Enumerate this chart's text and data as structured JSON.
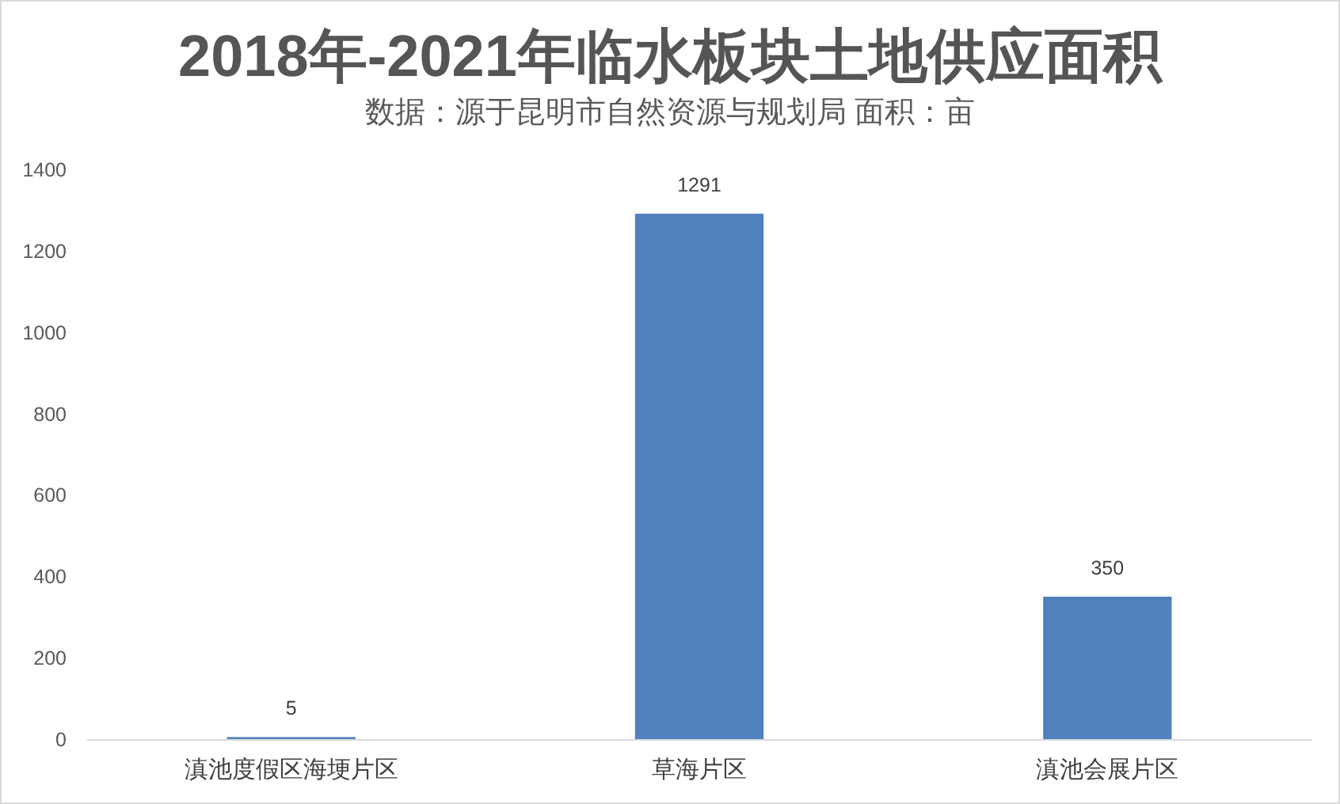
{
  "chart_data": {
    "type": "bar",
    "title": "2018年-2021年临水板块土地供应面积",
    "subtitle": "数据：源于昆明市自然资源与规划局 面积：亩",
    "categories": [
      "滇池度假区海埂片区",
      "草海片区",
      "滇池会展片区"
    ],
    "values": [
      5,
      1291,
      350
    ],
    "color": "#4f81bd",
    "ylim": [
      0,
      1400
    ],
    "yticks": [
      0,
      200,
      400,
      600,
      800,
      1000,
      1200,
      1400
    ],
    "data_labels": true
  }
}
